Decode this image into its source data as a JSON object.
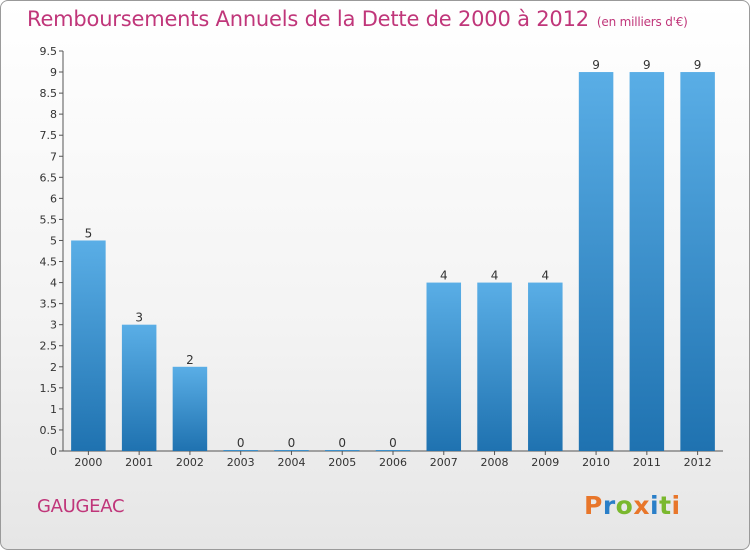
{
  "header": {
    "title": "Remboursements Annuels de la Dette de 2000 à 2012",
    "subtitle": "(en milliers d'€)"
  },
  "footer": {
    "commune": "GAUGEAC",
    "logo": "Proxiti"
  },
  "colors": {
    "title": "#c0367a",
    "bar_top": "#5aaee6",
    "bar_bottom": "#1f72b0",
    "logo_letters": [
      "#e8762a",
      "#2a7fc8",
      "#7ab82e",
      "#e8762a",
      "#2a7fc8",
      "#7ab82e",
      "#e8762a"
    ]
  },
  "chart_data": {
    "type": "bar",
    "categories": [
      "2000",
      "2001",
      "2002",
      "2003",
      "2004",
      "2005",
      "2006",
      "2007",
      "2008",
      "2009",
      "2010",
      "2011",
      "2012"
    ],
    "values": [
      5,
      3,
      2,
      0,
      0,
      0,
      0,
      4,
      4,
      4,
      9,
      9,
      9
    ],
    "data_labels": [
      "5",
      "3",
      "2",
      "0",
      "0",
      "0",
      "0",
      "4",
      "4",
      "4",
      "9",
      "9",
      "9"
    ],
    "y_ticks": [
      "0",
      "0.5",
      "1",
      "1.5",
      "2",
      "2.5",
      "3",
      "3.5",
      "4",
      "4.5",
      "5",
      "5.5",
      "6",
      "6.5",
      "7",
      "7.5",
      "8",
      "8.5",
      "9",
      "9.5"
    ],
    "ylim": [
      0,
      9.5
    ],
    "grid": false
  }
}
